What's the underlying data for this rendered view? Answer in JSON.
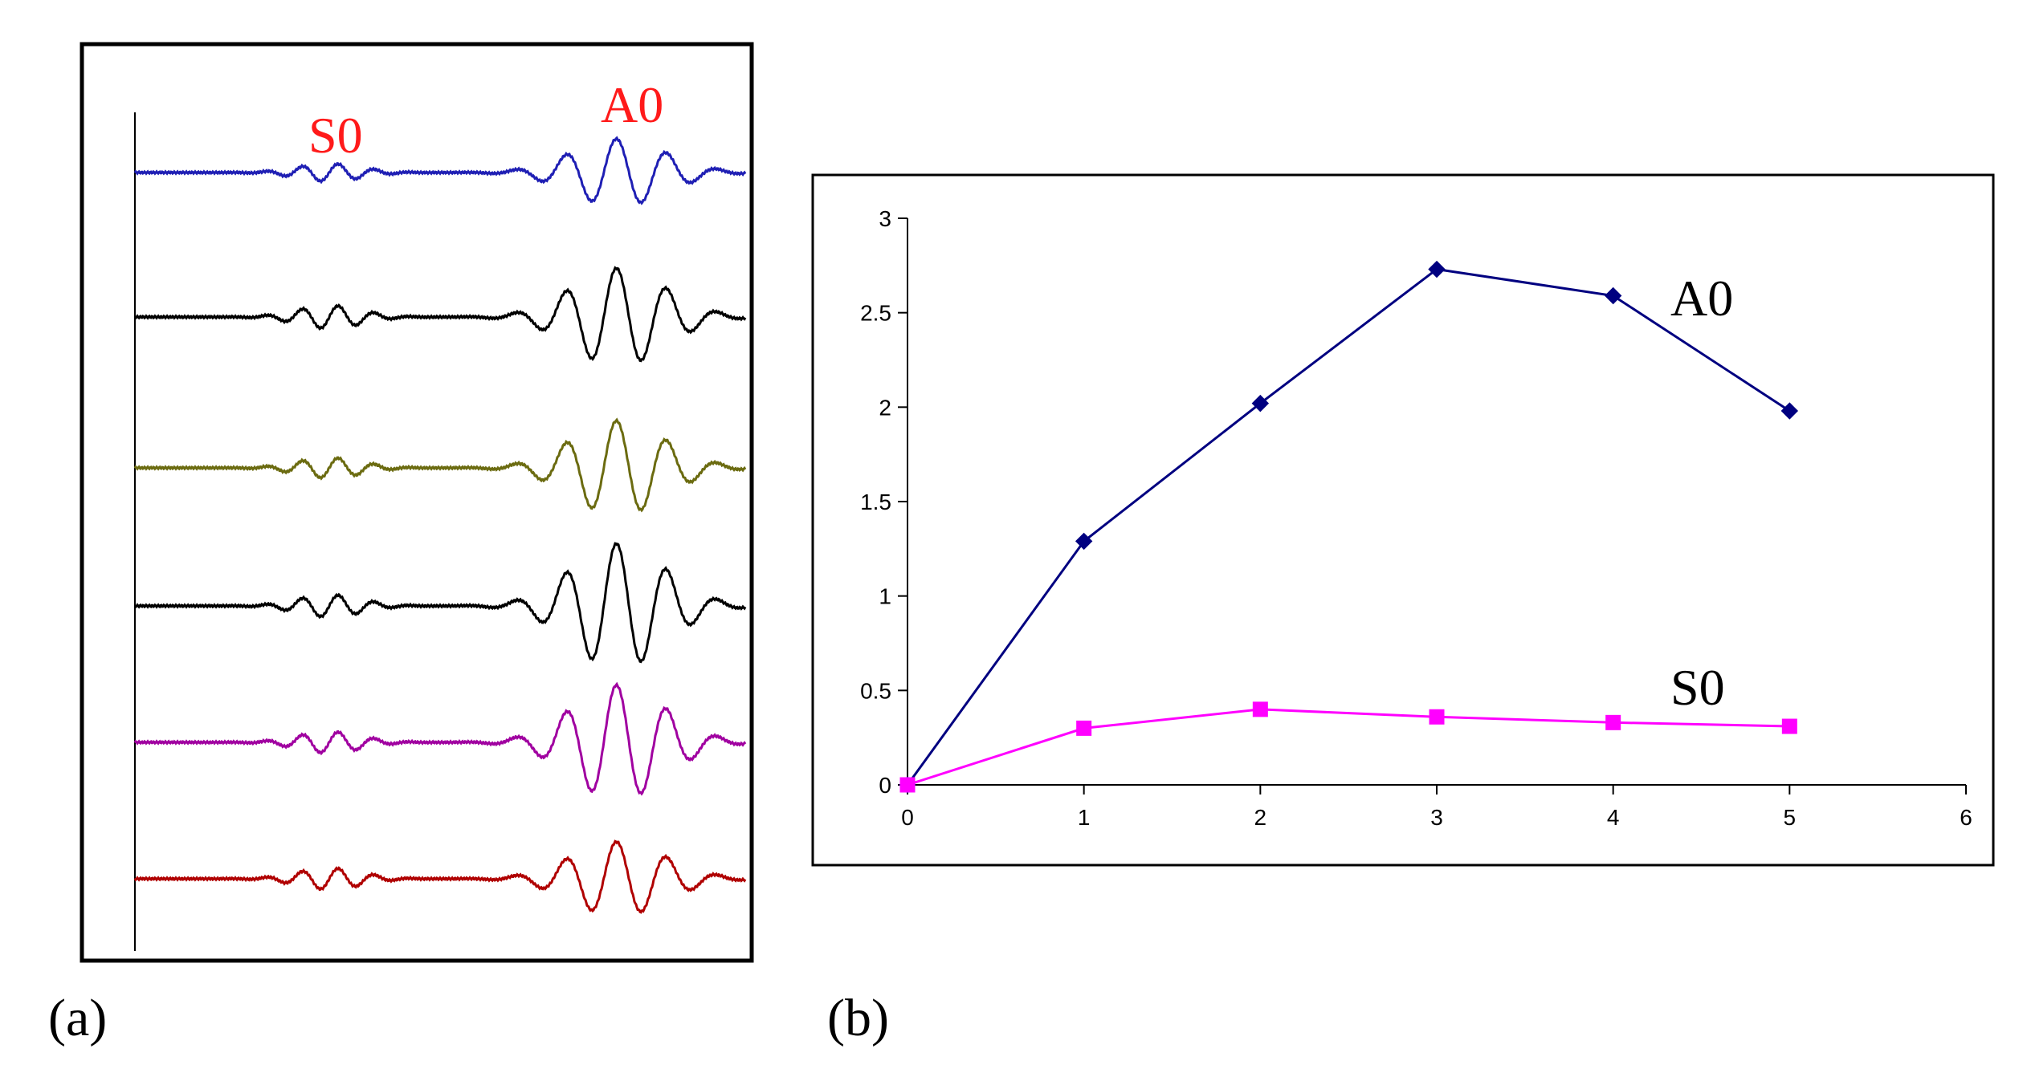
{
  "panel_a": {
    "panel_label": "(a)",
    "label_s0": "S0",
    "label_a0": "A0",
    "trace_colors": [
      "#1f1fb4",
      "#000000",
      "#6b6b10",
      "#000000",
      "#a000a0",
      "#b00000"
    ],
    "a0_relative_amplitudes": [
      1.0,
      1.45,
      1.4,
      1.85,
      1.7,
      1.1
    ],
    "s0_relative_amplitudes": [
      1.0,
      1.3,
      1.15,
      1.25,
      1.2,
      1.2
    ]
  },
  "panel_b": {
    "panel_label": "(b)",
    "chart_data": {
      "type": "line",
      "title": "",
      "xlabel": "",
      "ylabel": "",
      "xlim": [
        0,
        6
      ],
      "ylim": [
        0,
        3
      ],
      "xticks": [
        "0",
        "1",
        "2",
        "3",
        "4",
        "5",
        "6"
      ],
      "yticks": [
        "0",
        "0.5",
        "1",
        "1.5",
        "2",
        "2.5",
        "3"
      ],
      "grid": false,
      "legend": "none",
      "series": [
        {
          "name": "A0",
          "color": "#000080",
          "marker": "diamond",
          "x": [
            0,
            1,
            2,
            3,
            4,
            5
          ],
          "values": [
            0,
            1.29,
            2.02,
            2.73,
            2.59,
            1.98
          ]
        },
        {
          "name": "S0",
          "color": "#ff00ff",
          "marker": "square",
          "x": [
            0,
            1,
            2,
            3,
            4,
            5
          ],
          "values": [
            0,
            0.3,
            0.4,
            0.36,
            0.33,
            0.31
          ]
        }
      ]
    }
  }
}
